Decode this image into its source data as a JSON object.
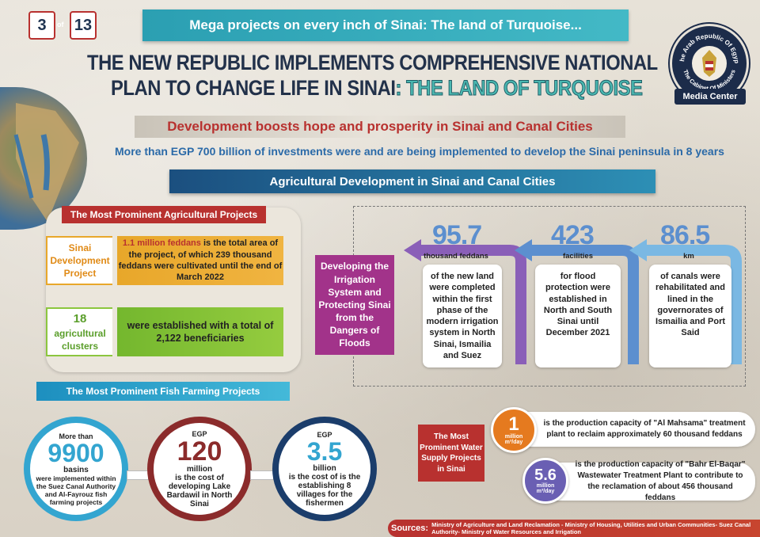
{
  "page": {
    "current": "3",
    "of": "of",
    "total": "13"
  },
  "header": {
    "banner": "Mega projects on every inch of Sinai: The land of Turquoise...",
    "title_line1": "THE NEW REPUBLIC IMPLEMENTS COMPREHENSIVE NATIONAL",
    "title_line2": "PLAN TO CHANGE LIFE IN SINAI",
    "title_sep": ":",
    "title_accent": "THE LAND OF TURQUOISE"
  },
  "logo": {
    "top_text": "The Arab Republic Of Egypt",
    "bottom_text": "The Cabinet Of Ministers",
    "center_label": "Media Center"
  },
  "development": "Development boosts hope and prosperity in Sinai and Canal Cities",
  "investment": "More than EGP 700 billion of investments were and are being implemented to develop the Sinai peninsula in 8 years",
  "agri_title": "Agricultural Development in Sinai and Canal Cities",
  "agri": {
    "label": "The Most Prominent Agricultural Projects",
    "project1": {
      "tag": "Sinai Development Project",
      "highlight": "1.1 million feddans",
      "desc": " is the total area of the project, of which 239 thousand feddans were cultivated until the end of March 2022"
    },
    "project2": {
      "tag_num": "18",
      "tag": "agricultural clusters",
      "desc": "were established with a total of 2,122 beneficiaries"
    }
  },
  "irrigation": {
    "label": "Developing the Irrigation System and Protecting Sinai from the Dangers of Floods",
    "items": [
      {
        "value": "95.7",
        "unit": "thousand feddans",
        "text": "of the new land were completed within the first phase of the modern irrigation system in North Sinai, Ismailia and Suez"
      },
      {
        "value": "423",
        "unit": "facilities",
        "text": "for flood protection were established in North and South Sinai until December 2021"
      },
      {
        "value": "86.5",
        "unit": "km",
        "text": "of canals were rehabilitated and lined in the governorates of Ismailia and Port Said"
      }
    ]
  },
  "fish": {
    "label": "The Most Prominent Fish Farming Projects",
    "items": [
      {
        "top": "More than",
        "value": "9900",
        "unit": "basins",
        "text": "were implemented within the Suez Canal Authority and Al-Fayrouz fish farming projects"
      },
      {
        "top": "EGP",
        "value": "120",
        "unit": "million",
        "text": "is the cost of developing Lake Bardawil in North Sinai"
      },
      {
        "top": "EGP",
        "value": "3.5",
        "unit": "billion",
        "text": "is the cost of is the establishing 8 villages for the fishermen"
      }
    ]
  },
  "water": {
    "label": "The Most Prominent Water Supply Projects in Sinai",
    "items": [
      {
        "value": "1",
        "unit": "million",
        "unit2": "m³/day",
        "text": "is the production capacity of \"Al Mahsama\" treatment plant to reclaim approximately 60 thousand feddans"
      },
      {
        "value": "5.6",
        "unit": "million",
        "unit2": "m³/day",
        "text": "is the production capacity of \"Bahr El-Baqar\" Wastewater Treatment Plant to contribute to the reclamation of about 456 thousand feddans"
      }
    ]
  },
  "sources": {
    "label": "Sources:",
    "text": "Ministry of Agriculture and Land Reclamation - Ministry of Housing, Utilities and Urban Communities- Suez Canal Authority- Ministry of Water Resources and Irrigation"
  },
  "colors": {
    "red": "#b8312f",
    "navy": "#22314a",
    "turquoise": "#4ab7b0",
    "purple": "#a2338a",
    "blue": "#5c8fcf"
  }
}
